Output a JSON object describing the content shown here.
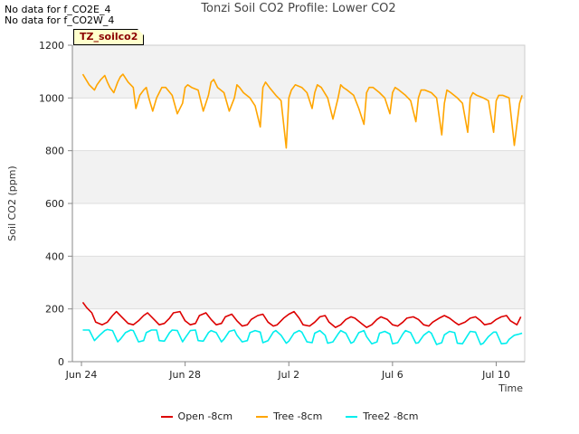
{
  "notes": [
    "No data for f_CO2E_4",
    "No data for f_CO2W_4"
  ],
  "tag_label": "TZ_soilco2",
  "chart_data": {
    "type": "line",
    "title": "Tonzi Soil CO2 Profile: Lower CO2",
    "xlabel": "Time",
    "ylabel": "Soil CO2 (ppm)",
    "xlim": [
      -0.35,
      17.1
    ],
    "ylim": [
      0,
      1200
    ],
    "x_units": "days since Jun 24",
    "x_ticks": [
      0,
      4,
      8,
      12,
      16
    ],
    "x_tick_labels": [
      "Jun 24",
      "Jun 28",
      "Jul 2",
      "Jul 6",
      "Jul 10"
    ],
    "y_ticks": [
      0,
      200,
      400,
      600,
      800,
      1000,
      1200
    ],
    "y_tick_labels": [
      "0",
      "200",
      "400",
      "600",
      "800",
      "1000",
      "1200"
    ],
    "grid": true,
    "legend_position": "bottom",
    "series": [
      {
        "name": "Open -8cm",
        "color": "#dd0000",
        "x": [
          0.05,
          0.2,
          0.4,
          0.55,
          0.8,
          1.0,
          1.2,
          1.35,
          1.55,
          1.8,
          2.0,
          2.2,
          2.4,
          2.55,
          2.8,
          3.0,
          3.2,
          3.4,
          3.55,
          3.8,
          4.0,
          4.2,
          4.4,
          4.55,
          4.8,
          5.0,
          5.2,
          5.4,
          5.55,
          5.8,
          6.0,
          6.2,
          6.4,
          6.55,
          6.8,
          7.0,
          7.2,
          7.4,
          7.55,
          7.8,
          8.0,
          8.2,
          8.4,
          8.55,
          8.8,
          9.0,
          9.2,
          9.4,
          9.55,
          9.8,
          10.0,
          10.2,
          10.4,
          10.55,
          10.8,
          11.0,
          11.2,
          11.4,
          11.55,
          11.8,
          12.0,
          12.2,
          12.4,
          12.55,
          12.8,
          13.0,
          13.2,
          13.4,
          13.55,
          13.8,
          14.0,
          14.2,
          14.4,
          14.55,
          14.8,
          15.0,
          15.2,
          15.4,
          15.55,
          15.8,
          16.0,
          16.2,
          16.4,
          16.55,
          16.8,
          16.95
        ],
        "y": [
          225,
          205,
          185,
          150,
          140,
          150,
          175,
          190,
          170,
          145,
          140,
          155,
          175,
          185,
          160,
          140,
          145,
          165,
          185,
          190,
          155,
          140,
          145,
          175,
          185,
          160,
          140,
          145,
          170,
          180,
          155,
          135,
          140,
          160,
          175,
          180,
          150,
          135,
          140,
          165,
          180,
          190,
          165,
          140,
          135,
          150,
          170,
          175,
          150,
          130,
          140,
          160,
          170,
          165,
          145,
          130,
          140,
          160,
          170,
          160,
          140,
          135,
          150,
          165,
          170,
          160,
          140,
          135,
          150,
          165,
          175,
          165,
          150,
          140,
          150,
          165,
          170,
          155,
          140,
          145,
          160,
          170,
          175,
          155,
          140,
          170
        ]
      },
      {
        "name": "Tree -8cm",
        "color": "#ffa500",
        "x": [
          0.05,
          0.3,
          0.5,
          0.6,
          0.75,
          0.9,
          1.0,
          1.1,
          1.25,
          1.4,
          1.5,
          1.6,
          1.8,
          2.0,
          2.1,
          2.25,
          2.4,
          2.5,
          2.6,
          2.75,
          2.9,
          3.0,
          3.1,
          3.25,
          3.5,
          3.7,
          3.9,
          4.0,
          4.1,
          4.25,
          4.5,
          4.7,
          4.9,
          5.0,
          5.1,
          5.25,
          5.5,
          5.7,
          5.9,
          6.0,
          6.1,
          6.25,
          6.5,
          6.7,
          6.9,
          7.0,
          7.1,
          7.25,
          7.5,
          7.7,
          7.9,
          8.0,
          8.1,
          8.25,
          8.5,
          8.7,
          8.9,
          9.0,
          9.1,
          9.25,
          9.5,
          9.7,
          9.9,
          10.0,
          10.1,
          10.25,
          10.5,
          10.7,
          10.9,
          11.0,
          11.1,
          11.25,
          11.5,
          11.7,
          11.9,
          12.0,
          12.1,
          12.25,
          12.5,
          12.7,
          12.9,
          13.0,
          13.1,
          13.25,
          13.5,
          13.7,
          13.9,
          14.0,
          14.1,
          14.25,
          14.5,
          14.7,
          14.9,
          15.0,
          15.1,
          15.25,
          15.5,
          15.7,
          15.9,
          16.0,
          16.1,
          16.25,
          16.5,
          16.7,
          16.9,
          17.0
        ],
        "y": [
          1090,
          1050,
          1030,
          1050,
          1070,
          1085,
          1060,
          1040,
          1020,
          1060,
          1080,
          1090,
          1060,
          1040,
          960,
          1010,
          1030,
          1040,
          1000,
          950,
          1000,
          1020,
          1040,
          1040,
          1010,
          940,
          980,
          1040,
          1050,
          1040,
          1030,
          950,
          1010,
          1060,
          1070,
          1040,
          1020,
          950,
          1000,
          1050,
          1040,
          1020,
          1000,
          970,
          890,
          1040,
          1060,
          1040,
          1010,
          990,
          810,
          1000,
          1030,
          1050,
          1040,
          1020,
          960,
          1020,
          1050,
          1040,
          1000,
          920,
          1000,
          1050,
          1040,
          1030,
          1010,
          960,
          900,
          1020,
          1040,
          1040,
          1020,
          1000,
          940,
          1020,
          1040,
          1030,
          1010,
          990,
          910,
          1000,
          1030,
          1030,
          1020,
          1000,
          860,
          980,
          1030,
          1020,
          1000,
          980,
          870,
          1000,
          1020,
          1010,
          1000,
          990,
          870,
          990,
          1010,
          1010,
          1000,
          820,
          980,
          1010
        ]
      },
      {
        "name": "Tree2 -8cm",
        "color": "#00eeee",
        "x": [
          0.05,
          0.3,
          0.5,
          0.7,
          0.9,
          1.0,
          1.2,
          1.4,
          1.5,
          1.7,
          1.9,
          2.0,
          2.2,
          2.4,
          2.5,
          2.7,
          2.9,
          3.0,
          3.2,
          3.4,
          3.5,
          3.7,
          3.9,
          4.0,
          4.2,
          4.4,
          4.5,
          4.7,
          4.9,
          5.0,
          5.2,
          5.4,
          5.5,
          5.7,
          5.9,
          6.0,
          6.2,
          6.4,
          6.5,
          6.7,
          6.9,
          7.0,
          7.2,
          7.4,
          7.5,
          7.7,
          7.9,
          8.0,
          8.2,
          8.4,
          8.5,
          8.7,
          8.9,
          9.0,
          9.2,
          9.4,
          9.5,
          9.7,
          9.9,
          10.0,
          10.2,
          10.4,
          10.5,
          10.7,
          10.9,
          11.0,
          11.2,
          11.4,
          11.5,
          11.7,
          11.9,
          12.0,
          12.2,
          12.4,
          12.5,
          12.7,
          12.9,
          13.0,
          13.2,
          13.4,
          13.5,
          13.7,
          13.9,
          14.0,
          14.2,
          14.4,
          14.5,
          14.7,
          14.9,
          15.0,
          15.2,
          15.4,
          15.5,
          15.7,
          15.9,
          16.0,
          16.2,
          16.4,
          16.5,
          16.7,
          16.9,
          17.0
        ],
        "y": [
          120,
          120,
          80,
          100,
          118,
          122,
          118,
          75,
          85,
          110,
          120,
          118,
          75,
          80,
          110,
          120,
          120,
          80,
          78,
          110,
          120,
          118,
          75,
          90,
          118,
          120,
          80,
          78,
          110,
          118,
          110,
          75,
          85,
          115,
          120,
          100,
          75,
          80,
          110,
          118,
          112,
          72,
          80,
          112,
          118,
          100,
          70,
          78,
          108,
          118,
          112,
          75,
          72,
          108,
          118,
          100,
          70,
          75,
          105,
          118,
          108,
          70,
          75,
          110,
          118,
          95,
          68,
          75,
          108,
          115,
          105,
          68,
          72,
          105,
          118,
          110,
          70,
          72,
          100,
          115,
          108,
          65,
          72,
          102,
          115,
          110,
          70,
          68,
          100,
          115,
          112,
          65,
          70,
          95,
          112,
          112,
          68,
          70,
          85,
          100,
          105,
          108
        ]
      }
    ]
  }
}
